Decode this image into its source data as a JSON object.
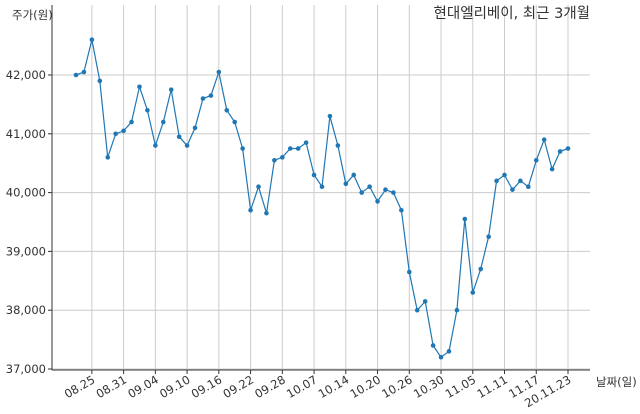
{
  "chart_data": {
    "type": "line",
    "title": "현대엘리베이, 최근 3개월",
    "ylabel": "주가(원)",
    "xlabel": "날짜(일)",
    "ylim": [
      37000,
      43000
    ],
    "yticks": [
      37000,
      38000,
      39000,
      40000,
      41000,
      42000
    ],
    "ytick_labels": [
      "37,000",
      "38,000",
      "39,000",
      "40,000",
      "41,000",
      "42,000"
    ],
    "xtick_labels": [
      "08.25",
      "08.31",
      "09.04",
      "09.10",
      "09.16",
      "09.22",
      "09.28",
      "10.07",
      "10.14",
      "10.20",
      "10.26",
      "10.30",
      "11.05",
      "11.11",
      "11.17",
      "20.11.23"
    ],
    "xtick_indices": [
      2,
      6,
      10,
      14,
      18,
      22,
      26,
      30,
      34,
      38,
      42,
      46,
      50,
      54,
      58,
      62
    ],
    "grid": true,
    "color": "#1f77b4",
    "series": [
      {
        "values": [
          42000,
          42050,
          42600,
          41900,
          40600,
          41000,
          41050,
          41200,
          41800,
          41400,
          40800,
          41200,
          41750,
          40950,
          40800,
          41100,
          41600,
          41650,
          42050,
          41400,
          41200,
          40750,
          39700,
          40100,
          39650,
          40550,
          40600,
          40750,
          40750,
          40850,
          40300,
          40100,
          41300,
          40800,
          40150,
          40300,
          40000,
          40100,
          39850,
          40050,
          40000,
          39700,
          38650,
          38000,
          38150,
          37400,
          37200,
          37300,
          38000,
          39550,
          38300,
          38700,
          39250,
          40200,
          40300,
          40050,
          40200,
          40100,
          40550,
          40900,
          40400,
          40700,
          40750
        ]
      }
    ]
  }
}
